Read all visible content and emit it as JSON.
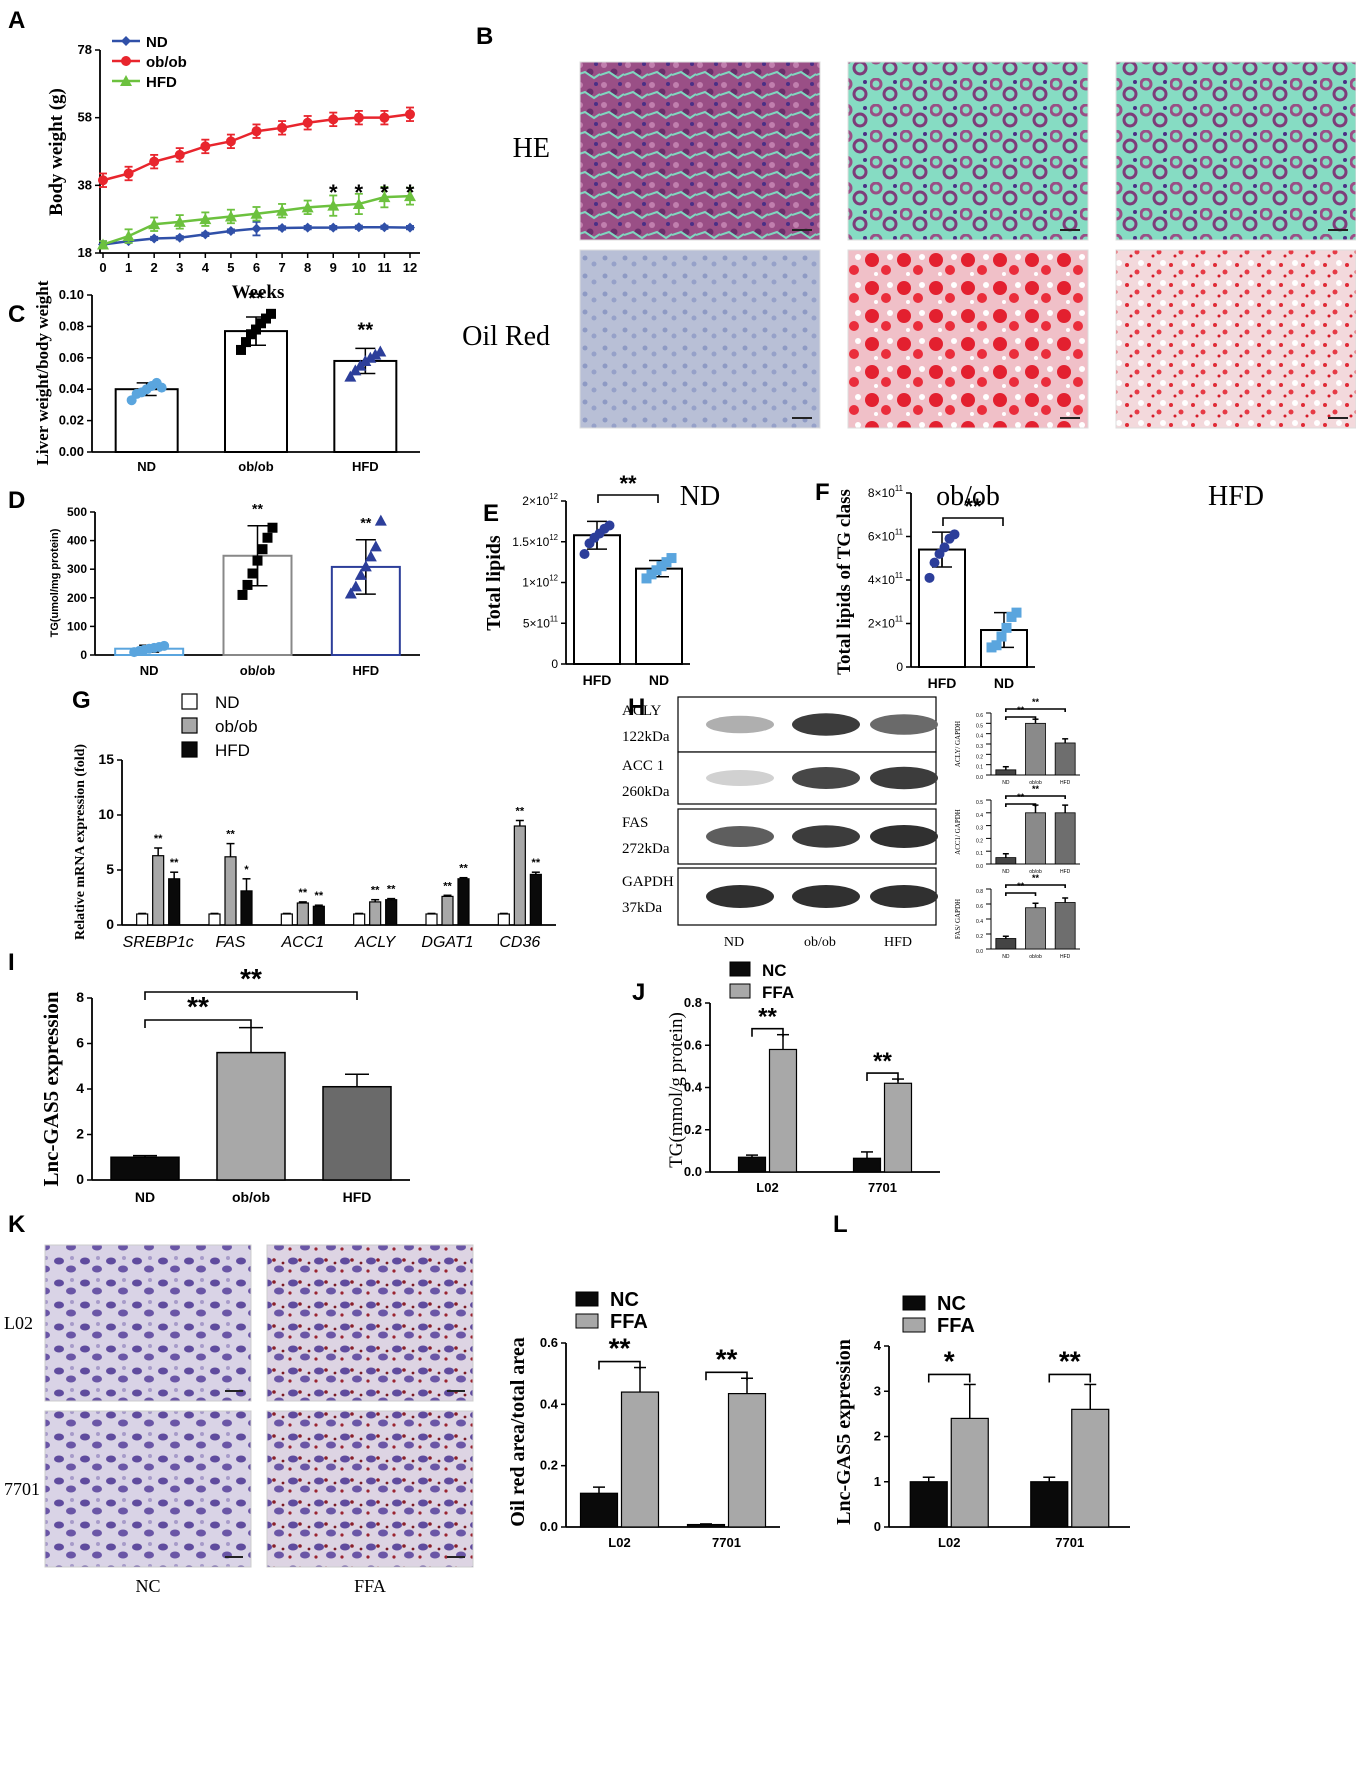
{
  "panel_letters": [
    "A",
    "B",
    "C",
    "D",
    "E",
    "F",
    "G",
    "H",
    "I",
    "J",
    "K",
    "L"
  ],
  "histology_B": {
    "row_labels": [
      "HE",
      "Oil Red"
    ],
    "col_labels": [
      "ND",
      "ob/ob",
      "HFD"
    ]
  },
  "histology_K": {
    "row_labels": [
      "L02",
      "7701"
    ],
    "col_labels": [
      "NC",
      "FFA"
    ]
  },
  "western_H": {
    "bands": [
      {
        "name": "ACLY",
        "size": "122kDa",
        "levels": [
          0.35,
          0.85,
          0.65
        ]
      },
      {
        "name": "ACC 1",
        "size": "260kDa",
        "levels": [
          0.2,
          0.8,
          0.85
        ]
      },
      {
        "name": "FAS",
        "size": "272kDa",
        "levels": [
          0.7,
          0.85,
          0.9
        ]
      },
      {
        "name": "GAPDH",
        "size": "37kDa",
        "levels": [
          0.9,
          0.9,
          0.9
        ]
      }
    ],
    "lanes": [
      "ND",
      "ob/ob",
      "HFD"
    ]
  },
  "chart_data": [
    {
      "id": "A",
      "type": "line",
      "xlabel": "Weeks",
      "ylabel": "Body weight (g)",
      "x": [
        0,
        1,
        2,
        3,
        4,
        5,
        6,
        7,
        8,
        9,
        10,
        11,
        12
      ],
      "xticks": [
        "0",
        "1",
        "2",
        "3",
        "4",
        "5",
        "6",
        "7",
        "8",
        "9",
        "10",
        "11",
        "12"
      ],
      "ylim": [
        18,
        78
      ],
      "yticks": [
        "18",
        "38",
        "58",
        "78"
      ],
      "series": [
        {
          "name": "ND",
          "color": "#3050a8",
          "marker": "diamond",
          "values": [
            20.5,
            21.5,
            22.3,
            22.5,
            23.5,
            24.5,
            25.2,
            25.4,
            25.5,
            25.5,
            25.6,
            25.6,
            25.5
          ],
          "err": [
            1,
            0.5,
            0.5,
            0.5,
            0.5,
            0.5,
            2,
            0.5,
            0.5,
            0.5,
            0.5,
            0.5,
            0.5
          ]
        },
        {
          "name": "ob/ob",
          "color": "#e8252d",
          "marker": "circle",
          "values": [
            39.5,
            41.5,
            45,
            47,
            49.5,
            51,
            54,
            55,
            56.5,
            57.5,
            58,
            58,
            59
          ],
          "err": [
            2,
            2,
            2,
            2,
            2,
            2,
            2,
            2,
            2,
            2,
            2,
            2,
            2
          ]
        },
        {
          "name": "HFD",
          "color": "#6cc13e",
          "marker": "triangle",
          "values": [
            20.5,
            23,
            26.5,
            27.2,
            28,
            28.8,
            29.6,
            30.5,
            31.5,
            32,
            32.5,
            34.5,
            34.8
          ],
          "err": [
            1,
            2,
            2,
            2,
            2,
            2,
            2,
            2,
            2,
            3,
            3,
            3,
            2.5
          ]
        }
      ],
      "annotations": [
        {
          "x": 9,
          "text": "*"
        },
        {
          "x": 10,
          "text": "*"
        },
        {
          "x": 11,
          "text": "*"
        },
        {
          "x": 12,
          "text": "*"
        }
      ]
    },
    {
      "id": "C",
      "type": "bar",
      "categories": [
        "ND",
        "ob/ob",
        "HFD"
      ],
      "values": [
        0.04,
        0.077,
        0.058
      ],
      "err": [
        0.004,
        0.009,
        0.008
      ],
      "points": [
        [
          0.033,
          0.037,
          0.038,
          0.04,
          0.042,
          0.044,
          0.041
        ],
        [
          0.065,
          0.07,
          0.075,
          0.078,
          0.082,
          0.085,
          0.088
        ],
        [
          0.048,
          0.052,
          0.055,
          0.058,
          0.06,
          0.062,
          0.064
        ]
      ],
      "point_colors": [
        "#5aa5de",
        "#000000",
        "#2c3e9a"
      ],
      "point_markers": [
        "circle",
        "square",
        "triangle"
      ],
      "ylabel": "Liver weight/body weight",
      "ylim": [
        0,
        0.1
      ],
      "yticks": [
        "0.00",
        "0.02",
        "0.04",
        "0.06",
        "0.08",
        "0.10"
      ],
      "sig": [
        "",
        "**",
        "**"
      ]
    },
    {
      "id": "D",
      "type": "bar",
      "categories": [
        "ND",
        "ob/ob",
        "HFD"
      ],
      "values": [
        22,
        347,
        308
      ],
      "err": [
        12,
        105,
        95
      ],
      "points": [
        [
          10,
          14,
          18,
          22,
          25,
          28,
          32
        ],
        [
          210,
          245,
          285,
          330,
          370,
          410,
          445
        ],
        [
          215,
          240,
          280,
          310,
          345,
          380,
          470
        ]
      ],
      "point_colors": [
        "#5aa5de",
        "#000000",
        "#2c3e9a"
      ],
      "point_markers": [
        "circle",
        "square",
        "triangle"
      ],
      "ylabel": "TG(umol/mg protein)",
      "ylim": [
        0,
        500
      ],
      "yticks": [
        "0",
        "100",
        "200",
        "300",
        "400",
        "500"
      ],
      "sig": [
        "",
        "**",
        "**"
      ]
    },
    {
      "id": "E",
      "type": "bar",
      "categories": [
        "HFD",
        "ND"
      ],
      "values": [
        1580000000000.0,
        1170000000000.0
      ],
      "err": [
        170000000000.0,
        100000000000.0
      ],
      "points": [
        [
          1350000000000.0,
          1480000000000.0,
          1550000000000.0,
          1600000000000.0,
          1660000000000.0,
          1700000000000.0
        ],
        [
          1050000000000.0,
          1100000000000.0,
          1150000000000.0,
          1200000000000.0,
          1250000000000.0,
          1300000000000.0
        ]
      ],
      "point_colors": [
        "#2c3e9a",
        "#5aa5de"
      ],
      "point_markers": [
        "circle",
        "square"
      ],
      "ylabel": "Total lipids",
      "ylim": [
        0,
        2000000000000.0
      ],
      "yticks": [
        "0",
        "5×10",
        "1×10",
        "1.5×10",
        "2×10"
      ],
      "ytick_exp": [
        "",
        "11",
        "12",
        "12",
        "12"
      ],
      "bracket": "**"
    },
    {
      "id": "F",
      "type": "bar",
      "categories": [
        "HFD",
        "ND"
      ],
      "values": [
        540000000000.0,
        170000000000.0
      ],
      "err": [
        80000000000.0,
        80000000000.0
      ],
      "points": [
        [
          410000000000.0,
          480000000000.0,
          520000000000.0,
          550000000000.0,
          590000000000.0,
          610000000000.0
        ],
        [
          90000000000.0,
          100000000000.0,
          140000000000.0,
          180000000000.0,
          230000000000.0,
          250000000000.0
        ]
      ],
      "point_colors": [
        "#2c3e9a",
        "#5aa5de"
      ],
      "point_markers": [
        "circle",
        "square"
      ],
      "ylabel": "Total lipids of TG class",
      "ylim": [
        0,
        800000000000.0
      ],
      "yticks": [
        "0",
        "2×10",
        "4×10",
        "6×10",
        "8×10"
      ],
      "ytick_exp": [
        "",
        "11",
        "11",
        "11",
        "11"
      ],
      "bracket": "**"
    },
    {
      "id": "G",
      "type": "bar",
      "categories": [
        "SREBP1c",
        "FAS",
        "ACC1",
        "ACLY",
        "DGAT1",
        "CD36"
      ],
      "series": [
        {
          "name": "ND",
          "color": "#ffffff",
          "values": [
            1,
            1,
            1,
            1,
            1,
            1
          ],
          "err": [
            0.05,
            0.05,
            0.05,
            0.05,
            0.05,
            0.05
          ]
        },
        {
          "name": "ob/ob",
          "color": "#a8a8a8",
          "values": [
            6.3,
            6.2,
            2.0,
            2.1,
            2.6,
            9.0
          ],
          "err": [
            0.7,
            1.2,
            0.1,
            0.2,
            0.1,
            0.5
          ]
        },
        {
          "name": "HFD",
          "color": "#0a0a0a",
          "values": [
            4.2,
            3.1,
            1.7,
            2.3,
            4.2,
            4.6
          ],
          "err": [
            0.6,
            1.1,
            0.1,
            0.1,
            0.1,
            0.2
          ]
        }
      ],
      "sig_obob": [
        "**",
        "**",
        "**",
        "**",
        "**",
        "**"
      ],
      "sig_hfd": [
        "**",
        "*",
        "**",
        "**",
        "**",
        "**"
      ],
      "ylabel": "Relative mRNA expression (fold)",
      "ylim": [
        0,
        15
      ],
      "yticks": [
        "0",
        "5",
        "10",
        "15"
      ]
    },
    {
      "id": "H",
      "type": "bar",
      "subcharts": [
        {
          "ylabel": "ACLY/ GAPDH",
          "categories": [
            "ND",
            "ob/ob",
            "HFD"
          ],
          "values": [
            0.05,
            0.5,
            0.31
          ],
          "err": [
            0.03,
            0.04,
            0.04
          ],
          "ylim": [
            0,
            0.6
          ],
          "yticks": [
            "0.0",
            "0.1",
            "0.2",
            "0.3",
            "0.4",
            "0.5",
            "0.6"
          ],
          "sig": "**"
        },
        {
          "ylabel": "ACC1/ GAPDH",
          "categories": [
            "ND",
            "ob/ob",
            "HFD"
          ],
          "values": [
            0.05,
            0.4,
            0.4
          ],
          "err": [
            0.03,
            0.06,
            0.06
          ],
          "ylim": [
            0,
            0.5
          ],
          "yticks": [
            "0.0",
            "0.1",
            "0.2",
            "0.3",
            "0.4",
            "0.5"
          ],
          "sig": "**"
        },
        {
          "ylabel": "FAS/ GAPDH",
          "categories": [
            "ND",
            "ob/ob",
            "HFD"
          ],
          "values": [
            0.14,
            0.55,
            0.62
          ],
          "err": [
            0.03,
            0.06,
            0.06
          ],
          "ylim": [
            0,
            0.8
          ],
          "yticks": [
            "0.0",
            "0.2",
            "0.4",
            "0.6",
            "0.8"
          ],
          "sig": "**"
        }
      ]
    },
    {
      "id": "I",
      "type": "bar",
      "categories": [
        "ND",
        "ob/ob",
        "HFD"
      ],
      "values": [
        1.0,
        5.6,
        4.1
      ],
      "err": [
        0.07,
        1.1,
        0.55
      ],
      "colors": [
        "#0a0a0a",
        "#a8a8a8",
        "#6a6a6a"
      ],
      "ylabel": "Lnc-GAS5  expression",
      "ylim": [
        0,
        8
      ],
      "yticks": [
        "0",
        "2",
        "4",
        "6",
        "8"
      ],
      "brackets": [
        "**",
        "**"
      ]
    },
    {
      "id": "J",
      "type": "bar",
      "categories": [
        "L02",
        "7701"
      ],
      "series": [
        {
          "name": "NC",
          "color": "#0a0a0a",
          "values": [
            0.07,
            0.065
          ],
          "err": [
            0.01,
            0.03
          ]
        },
        {
          "name": "FFA",
          "color": "#a8a8a8",
          "values": [
            0.58,
            0.42
          ],
          "err": [
            0.07,
            0.02
          ]
        }
      ],
      "ylabel": "TG(mmol/g protein)",
      "ylim": [
        0,
        0.8
      ],
      "yticks": [
        "0.0",
        "0.2",
        "0.4",
        "0.6",
        "0.8"
      ],
      "brackets": [
        "**",
        "**"
      ]
    },
    {
      "id": "K",
      "type": "bar",
      "categories": [
        "L02",
        "7701"
      ],
      "series": [
        {
          "name": "NC",
          "color": "#0a0a0a",
          "values": [
            0.11,
            0.008
          ],
          "err": [
            0.02,
            0.002
          ]
        },
        {
          "name": "FFA",
          "color": "#a8a8a8",
          "values": [
            0.44,
            0.435
          ],
          "err": [
            0.08,
            0.05
          ]
        }
      ],
      "ylabel": "Oil red area/total area",
      "ylim": [
        0,
        0.6
      ],
      "yticks": [
        "0.0",
        "0.2",
        "0.4",
        "0.6"
      ],
      "brackets": [
        "**",
        "**"
      ]
    },
    {
      "id": "L",
      "type": "bar",
      "categories": [
        "L02",
        "7701"
      ],
      "series": [
        {
          "name": "NC",
          "color": "#0a0a0a",
          "values": [
            1.0,
            1.0
          ],
          "err": [
            0.1,
            0.1
          ]
        },
        {
          "name": "FFA",
          "color": "#a8a8a8",
          "values": [
            2.4,
            2.6
          ],
          "err": [
            0.75,
            0.55
          ]
        }
      ],
      "ylabel": "Lnc-GAS5 expression",
      "ylim": [
        0,
        4
      ],
      "yticks": [
        "0",
        "1",
        "2",
        "3",
        "4"
      ],
      "brackets": [
        "*",
        "**"
      ]
    }
  ]
}
